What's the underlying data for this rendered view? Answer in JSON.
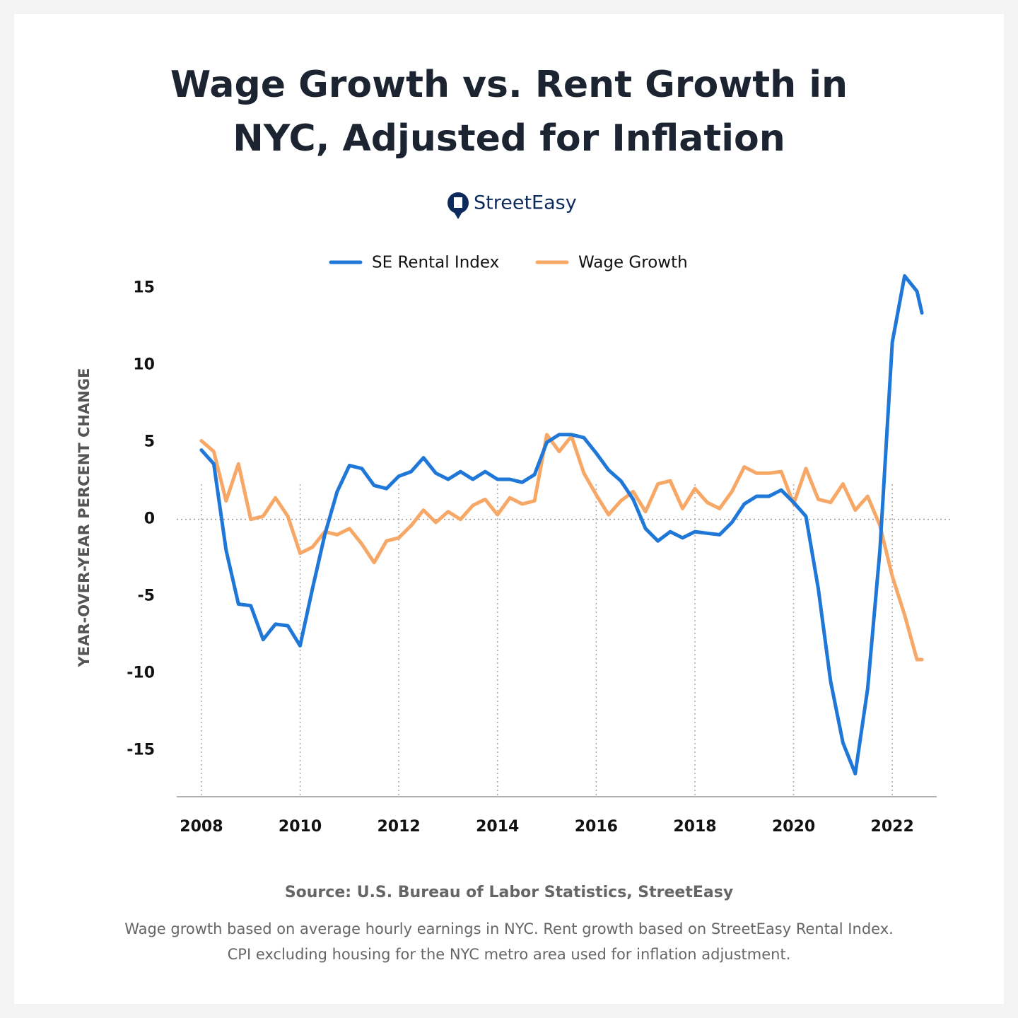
{
  "chart_data": {
    "type": "line",
    "title": "Wage Growth vs. Rent Growth in NYC, Adjusted for Inflation",
    "brand": "StreetEasy",
    "y_label": "YEAR-OVER-YEAR PERCENT CHANGE",
    "source": "Source: U.S. Bureau of Labor Statistics, StreetEasy",
    "note": "Wage growth based on average hourly earnings in NYC. Rent growth based on StreetEasy Rental Index. CPI excluding housing for the NYC metro area used for inflation adjustment.",
    "x": [
      2008,
      2008.25,
      2008.5,
      2008.75,
      2009,
      2009.25,
      2009.5,
      2009.75,
      2010,
      2010.25,
      2010.5,
      2010.75,
      2011,
      2011.25,
      2011.5,
      2011.75,
      2012,
      2012.25,
      2012.5,
      2012.75,
      2013,
      2013.25,
      2013.5,
      2013.75,
      2014,
      2014.25,
      2014.5,
      2014.75,
      2015,
      2015.25,
      2015.5,
      2015.75,
      2016,
      2016.25,
      2016.5,
      2016.75,
      2017,
      2017.25,
      2017.5,
      2017.75,
      2018,
      2018.25,
      2018.5,
      2018.75,
      2019,
      2019.25,
      2019.5,
      2019.75,
      2020,
      2020.25,
      2020.5,
      2020.75,
      2021,
      2021.25,
      2021.5,
      2021.75,
      2022,
      2022.25,
      2022.5,
      2022.6
    ],
    "series": [
      {
        "name": "SE Rental Index",
        "color": "#1f77d8",
        "values": [
          4.5,
          3.6,
          -2.0,
          -5.5,
          -5.6,
          -7.8,
          -6.8,
          -6.9,
          -8.2,
          -4.5,
          -1.0,
          1.8,
          3.5,
          3.3,
          2.2,
          2.0,
          2.8,
          3.1,
          4.0,
          3.0,
          2.6,
          3.1,
          2.6,
          3.1,
          2.6,
          2.6,
          2.4,
          2.9,
          5.0,
          5.5,
          5.5,
          5.3,
          4.3,
          3.2,
          2.5,
          1.3,
          -0.6,
          -1.4,
          -0.8,
          -1.2,
          -0.8,
          -0.9,
          -1.0,
          -0.2,
          1.0,
          1.5,
          1.5,
          1.9,
          1.1,
          0.2,
          -4.5,
          -10.5,
          -14.5,
          -16.5,
          -11.0,
          -2.0,
          11.5,
          15.8,
          14.8,
          13.4
        ]
      },
      {
        "name": "Wage Growth",
        "color": "#f7a766",
        "values": [
          5.1,
          4.4,
          1.2,
          3.6,
          0.0,
          0.2,
          1.4,
          0.2,
          -2.2,
          -1.8,
          -0.8,
          -1.0,
          -0.6,
          -1.6,
          -2.8,
          -1.4,
          -1.2,
          -0.4,
          0.6,
          -0.2,
          0.5,
          0.0,
          0.9,
          1.3,
          0.3,
          1.4,
          1.0,
          1.2,
          5.5,
          4.4,
          5.4,
          3.0,
          1.6,
          0.3,
          1.2,
          1.8,
          0.5,
          2.3,
          2.5,
          0.7,
          2.0,
          1.1,
          0.7,
          1.8,
          3.4,
          3.0,
          3.0,
          3.1,
          1.0,
          3.3,
          1.3,
          1.1,
          2.3,
          0.6,
          1.5,
          -0.4,
          -3.7,
          -6.2,
          -9.1,
          -9.1
        ]
      }
    ],
    "xlim": [
      2007.5,
      2022.9
    ],
    "xticks": [
      2008,
      2010,
      2012,
      2014,
      2016,
      2018,
      2020,
      2022
    ],
    "ylim": [
      -18,
      16.5
    ],
    "yticks": [
      -15,
      -10,
      -5,
      0,
      5,
      10,
      15
    ],
    "grid": "x",
    "legend": "top"
  }
}
